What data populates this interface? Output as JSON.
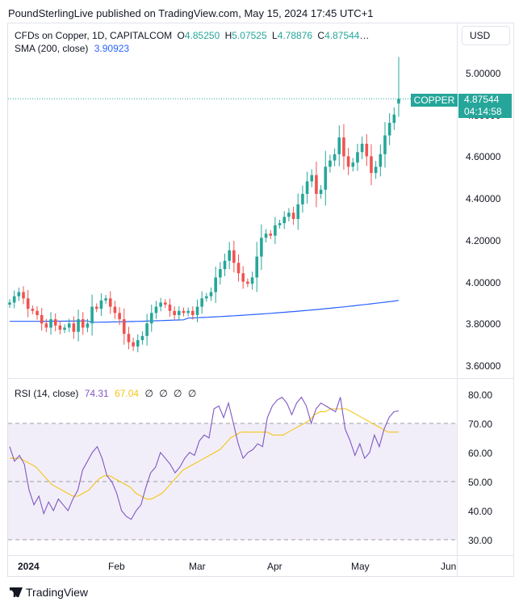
{
  "header": "PoundSterlingLive published on TradingView.com, May 15, 2024 17:45 UTC+1",
  "legend": {
    "symbol": "CFDs on Copper, 1D, CAPITALCOM",
    "o_label": "O",
    "o": "4.85250",
    "h_label": "H",
    "h": "5.07525",
    "l_label": "L",
    "l": "4.78876",
    "c_label": "C",
    "c": "4.87544",
    "ellipsis": "…",
    "sma_label": "SMA (200, close)",
    "sma_value": "3.90923",
    "rsi_label": "RSI (14, close)",
    "rsi_value": "74.31",
    "rsi_ma_value": "67.04",
    "empty_marks": [
      "∅",
      "∅",
      "∅",
      "∅"
    ]
  },
  "currency_button": "USD",
  "price_badge": {
    "name": "COPPER",
    "price": "4.87544",
    "countdown": "04:14:58"
  },
  "footer": "TradingView",
  "colors": {
    "up": "#26a69a",
    "down": "#ef5350",
    "sma": "#2962ff",
    "rsi": "#7e57c2",
    "rsi_ma": "#f5c518"
  },
  "chart_data": [
    {
      "type": "candlestick",
      "title": "CFDs on Copper, 1D, CAPITALCOM",
      "x_labels": [
        "2024",
        "Feb",
        "Mar",
        "Apr",
        "May",
        "Jun"
      ],
      "y_ticks": [
        "5.00000",
        "4.80000",
        "4.60000",
        "4.40000",
        "4.20000",
        "4.00000",
        "3.80000",
        "3.60000"
      ],
      "ylim": [
        3.55,
        5.12
      ],
      "closes": [
        3.9,
        3.93,
        3.95,
        3.92,
        3.87,
        3.86,
        3.84,
        3.8,
        3.78,
        3.82,
        3.79,
        3.77,
        3.78,
        3.8,
        3.76,
        3.82,
        3.78,
        3.8,
        3.88,
        3.87,
        3.91,
        3.92,
        3.88,
        3.85,
        3.82,
        3.75,
        3.71,
        3.69,
        3.72,
        3.74,
        3.8,
        3.85,
        3.88,
        3.9,
        3.89,
        3.86,
        3.84,
        3.86,
        3.85,
        3.86,
        3.84,
        3.88,
        3.92,
        3.93,
        3.95,
        4.02,
        4.06,
        4.1,
        4.15,
        4.09,
        4.04,
        4.0,
        3.99,
        4.02,
        4.12,
        4.21,
        4.23,
        4.22,
        4.27,
        4.28,
        4.31,
        4.33,
        4.3,
        4.37,
        4.42,
        4.48,
        4.51,
        4.42,
        4.44,
        4.55,
        4.58,
        4.61,
        4.69,
        4.6,
        4.55,
        4.57,
        4.62,
        4.66,
        4.6,
        4.52,
        4.55,
        4.61,
        4.7,
        4.76,
        4.8,
        4.87544
      ],
      "overlay": {
        "name": "SMA (200, close)",
        "start": 3.81,
        "end": 3.91
      }
    },
    {
      "type": "line",
      "title": "RSI (14, close)",
      "y_ticks": [
        "80.00",
        "70.00",
        "60.00",
        "50.00",
        "40.00",
        "30.00"
      ],
      "ylim": [
        25,
        85
      ],
      "bands": [
        30,
        70
      ],
      "midline": 50,
      "series": [
        {
          "name": "RSI",
          "values": [
            62,
            57,
            59,
            56,
            47,
            42,
            45,
            39,
            43,
            40,
            44,
            42,
            40,
            44,
            47,
            54,
            57,
            60,
            62,
            58,
            52,
            50,
            46,
            40,
            38,
            37,
            40,
            42,
            48,
            53,
            55,
            60,
            58,
            56,
            53,
            55,
            58,
            60,
            59,
            64,
            66,
            65,
            75,
            76,
            72,
            77,
            70,
            63,
            58,
            60,
            61,
            63,
            62,
            72,
            76,
            78,
            79,
            77,
            73,
            77,
            79,
            76,
            70,
            75,
            77,
            76,
            75,
            74,
            79,
            68,
            64,
            59,
            63,
            58,
            60,
            66,
            62,
            68,
            72,
            74,
            74.31
          ]
        },
        {
          "name": "RSI MA",
          "values": [
            58,
            58,
            58,
            57,
            56,
            55,
            53,
            51,
            49,
            48,
            47,
            46,
            45,
            45,
            46,
            47,
            49,
            51,
            52,
            52,
            51,
            50,
            49,
            48,
            46,
            45,
            44,
            44,
            45,
            46,
            48,
            50,
            52,
            54,
            55,
            56,
            57,
            58,
            59,
            60,
            61,
            63,
            65,
            66,
            67,
            67,
            67,
            67,
            67,
            67,
            66,
            66,
            66,
            67,
            68,
            69,
            70,
            71,
            73,
            74,
            74,
            75,
            75,
            75,
            75,
            74,
            73,
            72,
            71,
            70,
            69,
            68,
            67,
            67,
            67.04
          ]
        }
      ]
    }
  ]
}
